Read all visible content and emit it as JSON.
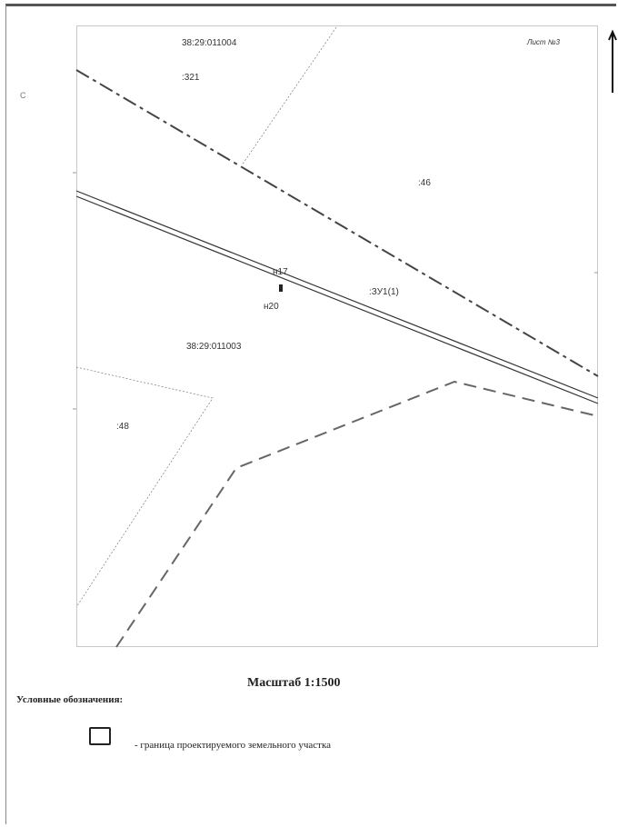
{
  "map": {
    "sheet_label": "Лист №3",
    "side_letter": "С",
    "blocks": [
      {
        "id": "block-011004",
        "text": "38:29:011004"
      },
      {
        "id": "block-011003",
        "text": "38:29:011003"
      }
    ],
    "parcels": [
      {
        "id": "parcel-321",
        "text": ":321"
      },
      {
        "id": "parcel-46",
        "text": ":46"
      },
      {
        "id": "parcel-zu1",
        "text": ":ЗУ1(1)"
      },
      {
        "id": "parcel-48",
        "text": ":48"
      }
    ],
    "points": [
      {
        "id": "point-n17",
        "text": "н17"
      },
      {
        "id": "point-n20",
        "text": "н20"
      }
    ]
  },
  "scale": {
    "text": "Масштаб 1:1500"
  },
  "legend": {
    "title": "Условные обозначения:",
    "items": [
      {
        "text": "- граница проектируемого земельного участка"
      }
    ]
  },
  "colors": {
    "line": "#333333",
    "dashed": "#555555",
    "thin": "#777777"
  }
}
